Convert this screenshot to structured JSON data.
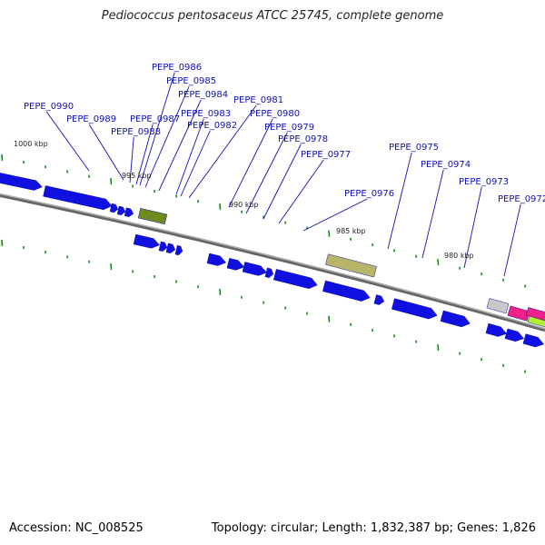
{
  "title": "Pediococcus pentosaceus ATCC 25745, complete genome",
  "footer": {
    "accession": "Accession: NC_008525",
    "summary": "Topology: circular; Length: 1,832,387 bp; Genes: 1,826"
  },
  "colors": {
    "gene": "#1010e0",
    "label": "#1010b0",
    "leader": "#1010b0",
    "tick": "#1a8a1a",
    "backbone": "#808080",
    "olive": "#6f8a1f",
    "khaki": "#b8b46a",
    "grey": "#c8c8c8",
    "magenta": "#f0208a",
    "lime": "#b0f030"
  },
  "kbp_labels": [
    "1000 kbp",
    "995 kbp",
    "990 kbp",
    "985 kbp",
    "980 kbp"
  ],
  "gene_labels": [
    "PEPE_0990",
    "PEPE_0989",
    "PEPE_0988",
    "PEPE_0987",
    "PEPE_0986",
    "PEPE_0985",
    "PEPE_0984",
    "PEPE_0983",
    "PEPE_0982",
    "PEPE_0981",
    "PEPE_0980",
    "PEPE_0979",
    "PEPE_0978",
    "PEPE_0977",
    "PEPE_0976",
    "PEPE_0975",
    "PEPE_0974",
    "PEPE_0973",
    "PEPE_0972"
  ]
}
